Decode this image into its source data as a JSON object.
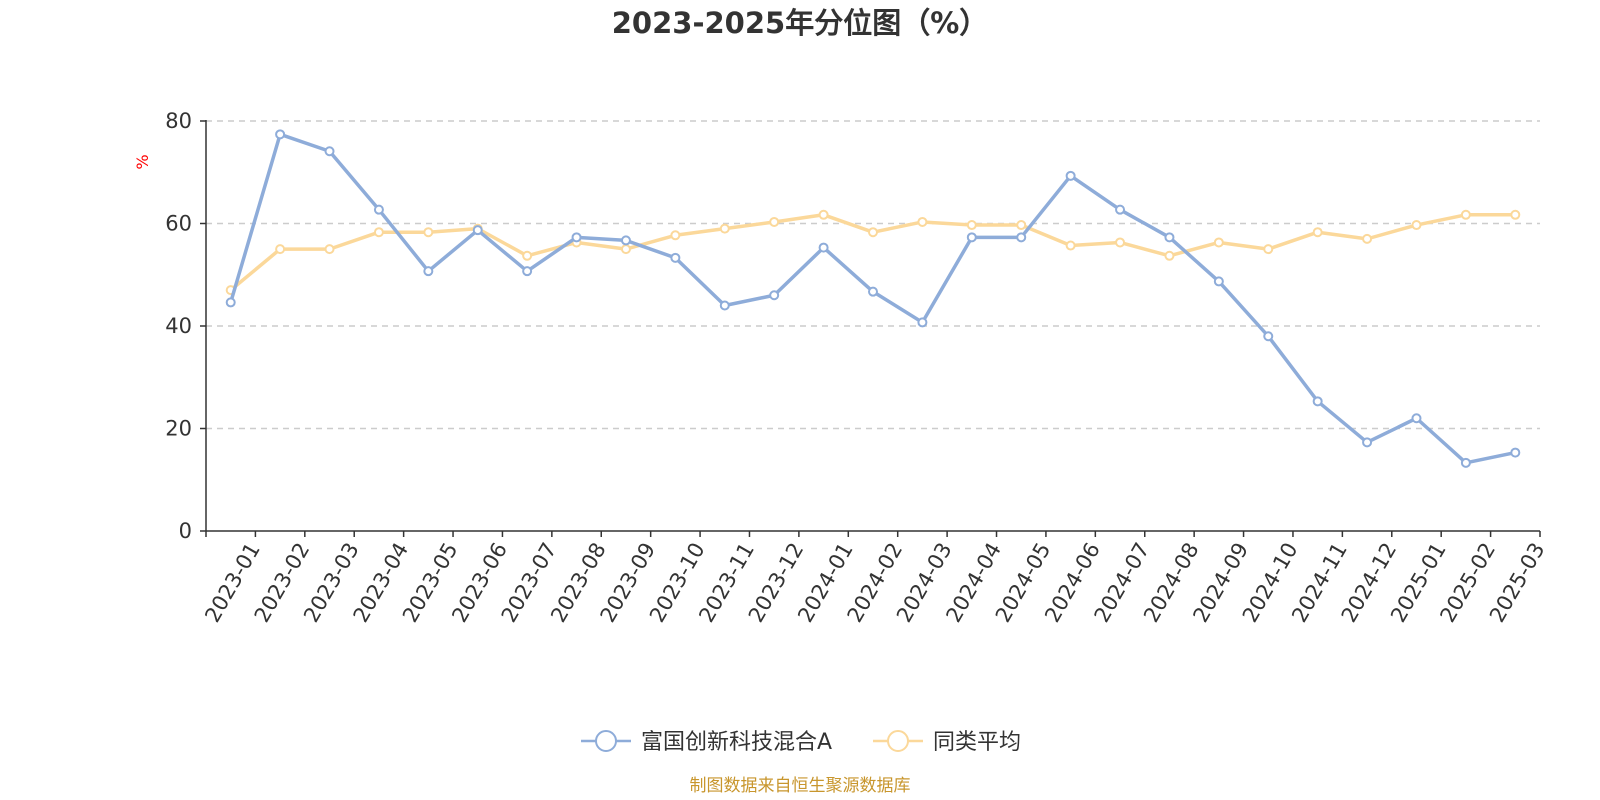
{
  "source_note": "制图数据来自恒生聚源数据库",
  "chart_data": {
    "type": "line",
    "title": "2023-2025年分位图（%）",
    "ylabel": "%",
    "ylim": [
      0,
      80
    ],
    "yticks": [
      0,
      20,
      40,
      60,
      80
    ],
    "grid": true,
    "legend_position": "bottom",
    "categories": [
      "2023-01",
      "2023-02",
      "2023-03",
      "2023-04",
      "2023-05",
      "2023-06",
      "2023-07",
      "2023-08",
      "2023-09",
      "2023-10",
      "2023-11",
      "2023-12",
      "2024-01",
      "2024-02",
      "2024-03",
      "2024-04",
      "2024-05",
      "2024-06",
      "2024-07",
      "2024-08",
      "2024-09",
      "2024-10",
      "2024-11",
      "2024-12",
      "2025-01",
      "2025-02",
      "2025-03"
    ],
    "series": [
      {
        "name": "富国创新科技混合A",
        "color": "#8eacd9",
        "values": [
          44.6,
          77.4,
          74.1,
          62.7,
          50.7,
          58.7,
          50.7,
          57.3,
          56.7,
          53.3,
          44.0,
          46.0,
          55.3,
          46.7,
          40.7,
          57.3,
          57.3,
          69.3,
          62.7,
          57.3,
          48.7,
          38.0,
          25.3,
          17.3,
          22.0,
          13.3,
          15.3
        ]
      },
      {
        "name": "同类平均",
        "color": "#fbd89a",
        "values": [
          47.0,
          55.0,
          55.0,
          58.3,
          58.3,
          59.0,
          53.7,
          56.3,
          55.0,
          57.7,
          59.0,
          60.3,
          61.7,
          58.3,
          60.3,
          59.7,
          59.7,
          55.7,
          56.3,
          53.7,
          56.3,
          55.0,
          58.3,
          57.0,
          59.7,
          61.7,
          61.7
        ]
      }
    ]
  }
}
